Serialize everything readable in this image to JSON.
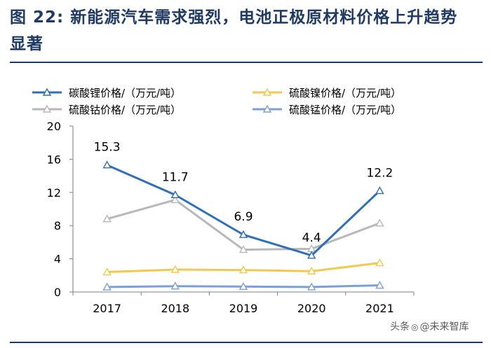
{
  "figure": {
    "title": "图  22:  新能源汽车需求强烈，电池正极原材料价格上升趋势显著"
  },
  "watermark": {
    "prefix": "头条",
    "icon": "wechat-icon",
    "author": "@未来智库"
  },
  "chart_data": {
    "type": "line",
    "title": "",
    "xlabel": "",
    "ylabel": "",
    "categories": [
      "2017",
      "2018",
      "2019",
      "2020",
      "2021"
    ],
    "ylim": [
      0,
      20
    ],
    "yticks": [
      "0",
      "4",
      "8",
      "12",
      "16",
      "20"
    ],
    "legend_position": "top",
    "series": [
      {
        "name": "碳酸锂价格/（万元/吨）",
        "color": "#2e6fb5",
        "values": [
          15.3,
          11.7,
          6.9,
          4.4,
          12.2
        ],
        "labels": [
          "15.3",
          "11.7",
          "6.9",
          "4.4",
          "12.2"
        ]
      },
      {
        "name": "硫酸镍价格/（万元/吨）",
        "color": "#f2c94c",
        "values": [
          2.4,
          2.7,
          2.65,
          2.5,
          3.5
        ]
      },
      {
        "name": "硫酸钴价格/（万元/吨）",
        "color": "#b8b8b8",
        "values": [
          8.8,
          11.1,
          5.1,
          5.2,
          8.3
        ]
      },
      {
        "name": "硫酸锰价格/（万元/吨）",
        "color": "#7e9fd4",
        "values": [
          0.6,
          0.7,
          0.65,
          0.6,
          0.8
        ]
      }
    ]
  }
}
